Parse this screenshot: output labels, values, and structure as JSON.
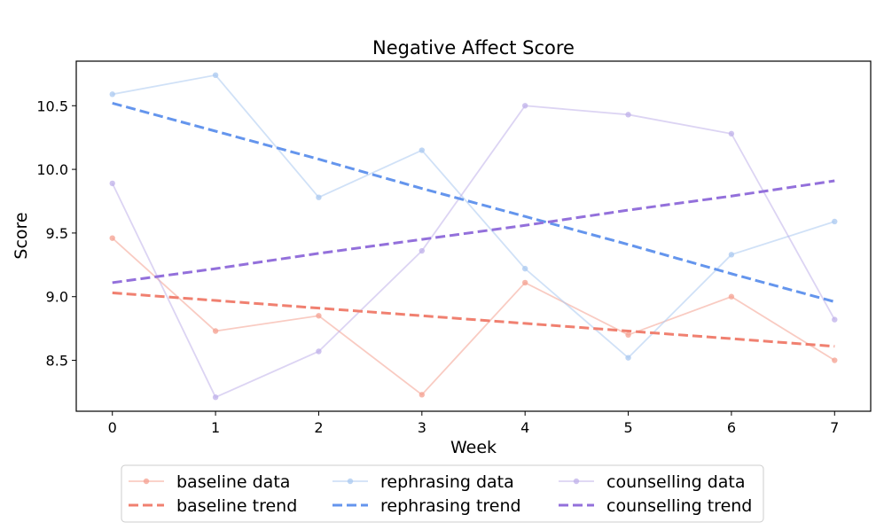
{
  "chart_data": {
    "type": "line",
    "title": "Negative Affect Score",
    "xlabel": "Week",
    "ylabel": "Score",
    "x": [
      0,
      1,
      2,
      3,
      4,
      5,
      6,
      7
    ],
    "xlim": [
      -0.35,
      7.35
    ],
    "ylim": [
      8.1,
      10.85
    ],
    "yticks": [
      8.5,
      9.0,
      9.5,
      10.0,
      10.5
    ],
    "ytick_labels": [
      "8.5",
      "9.0",
      "9.5",
      "10.0",
      "10.5"
    ],
    "xtick_labels": [
      "0",
      "1",
      "2",
      "3",
      "4",
      "5",
      "6",
      "7"
    ],
    "grid": false,
    "legend_position": "bottom-center",
    "series": [
      {
        "name": "baseline data",
        "kind": "data",
        "color": "#f4a090",
        "values": [
          9.46,
          8.73,
          8.85,
          8.23,
          9.11,
          8.7,
          9.0,
          8.5
        ]
      },
      {
        "name": "rephrasing data",
        "kind": "data",
        "color": "#a9c8f0",
        "values": [
          10.59,
          10.74,
          9.78,
          10.15,
          9.22,
          8.52,
          9.33,
          9.59
        ]
      },
      {
        "name": "counselling data",
        "kind": "data",
        "color": "#bfb0ea",
        "values": [
          9.89,
          8.21,
          8.57,
          9.36,
          10.5,
          10.43,
          10.28,
          8.82
        ]
      },
      {
        "name": "baseline trend",
        "kind": "trend",
        "color": "#f08070",
        "values": [
          9.03,
          8.97,
          8.91,
          8.85,
          8.79,
          8.73,
          8.67,
          8.61
        ]
      },
      {
        "name": "rephrasing trend",
        "kind": "trend",
        "color": "#6495ed",
        "values": [
          10.52,
          10.3,
          10.08,
          9.85,
          9.63,
          9.41,
          9.18,
          8.96
        ]
      },
      {
        "name": "counselling trend",
        "kind": "trend",
        "color": "#9370db",
        "values": [
          9.11,
          9.22,
          9.34,
          9.45,
          9.56,
          9.68,
          9.79,
          9.91
        ]
      }
    ],
    "legend_order": [
      "baseline data",
      "rephrasing data",
      "counselling data",
      "baseline trend",
      "rephrasing trend",
      "counselling trend"
    ]
  }
}
